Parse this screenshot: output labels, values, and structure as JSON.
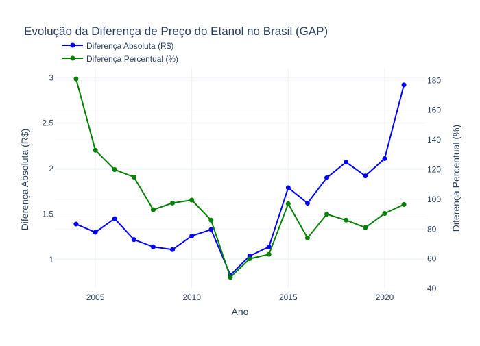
{
  "chart_data": {
    "type": "line",
    "title": "Evolução da Diferença de Preço do Etanol no Brasil (GAP)",
    "xlabel": "Ano",
    "ylabel_left": "Diferença Absoluta (R$)",
    "ylabel_right": "Diferença Percentual (%)",
    "x": [
      2004,
      2005,
      2006,
      2007,
      2008,
      2009,
      2010,
      2011,
      2012,
      2013,
      2014,
      2015,
      2016,
      2017,
      2018,
      2019,
      2020,
      2021
    ],
    "xlim": [
      2002.9,
      2022.1
    ],
    "xticks": [
      2005,
      2010,
      2015,
      2020
    ],
    "ylim_left": [
      0.69,
      3.1
    ],
    "yticks_left": [
      1,
      1.5,
      2,
      2.5,
      3
    ],
    "ylim_right": [
      40.5,
      188
    ],
    "yticks_right": [
      40,
      60,
      80,
      100,
      120,
      140,
      160,
      180
    ],
    "grid": true,
    "legend_position": "top-left",
    "series": [
      {
        "name": "Diferença Absoluta (R$)",
        "axis": "left",
        "color": "#0000ff",
        "values": [
          1.39,
          1.3,
          1.45,
          1.22,
          1.14,
          1.11,
          1.26,
          1.33,
          0.83,
          1.04,
          1.14,
          1.79,
          1.62,
          1.9,
          2.07,
          1.92,
          2.11,
          2.92
        ]
      },
      {
        "name": "Diferença Percentual (%)",
        "axis": "right",
        "color": "#008000",
        "values": [
          181,
          133,
          120,
          115,
          93,
          97.5,
          99.5,
          86,
          47.5,
          60,
          63,
          97,
          74,
          90,
          86,
          81,
          90.5,
          96.5
        ]
      }
    ]
  }
}
